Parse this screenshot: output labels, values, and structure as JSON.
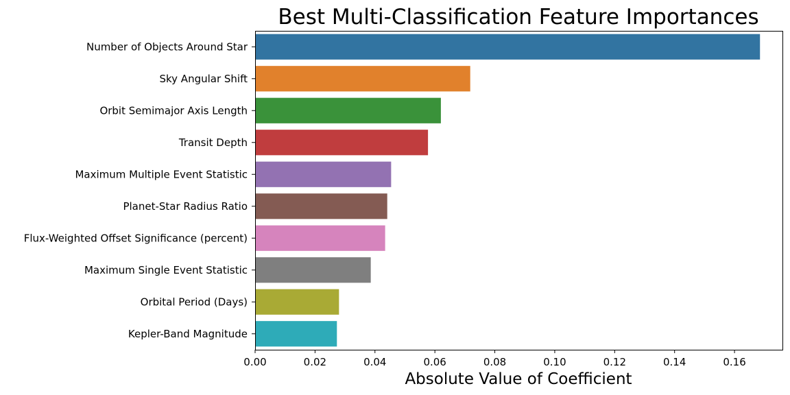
{
  "chart_data": {
    "type": "bar",
    "orientation": "horizontal",
    "title": "Best Multi-Classification Feature Importances",
    "xlabel": "Absolute Value of Coefficient",
    "ylabel": "",
    "xlim": [
      0,
      0.176
    ],
    "xticks": [
      0.0,
      0.02,
      0.04,
      0.06,
      0.08,
      0.1,
      0.12,
      0.14,
      0.16
    ],
    "xtick_labels": [
      "0.00",
      "0.02",
      "0.04",
      "0.06",
      "0.08",
      "0.10",
      "0.12",
      "0.14",
      "0.16"
    ],
    "grid": false,
    "legend": "none",
    "categories": [
      "Number of Objects Around Star",
      "Sky Angular Shift",
      "Orbit Semimajor Axis Length",
      "Transit Depth",
      "Maximum Multiple Event Statistic",
      "Planet-Star Radius Ratio",
      "Flux-Weighted Offset Significance (percent)",
      "Maximum Single Event Statistic",
      "Orbital Period (Days)",
      "Kepler-Band Magnitude"
    ],
    "values": [
      0.1685,
      0.0718,
      0.062,
      0.0577,
      0.0454,
      0.0441,
      0.0434,
      0.0386,
      0.028,
      0.0273
    ],
    "colors": [
      "#3274a1",
      "#e1812c",
      "#3a923a",
      "#c03d3e",
      "#9372b2",
      "#845b53",
      "#d684bd",
      "#7f7f7f",
      "#a9aa35",
      "#2eabb8"
    ]
  }
}
